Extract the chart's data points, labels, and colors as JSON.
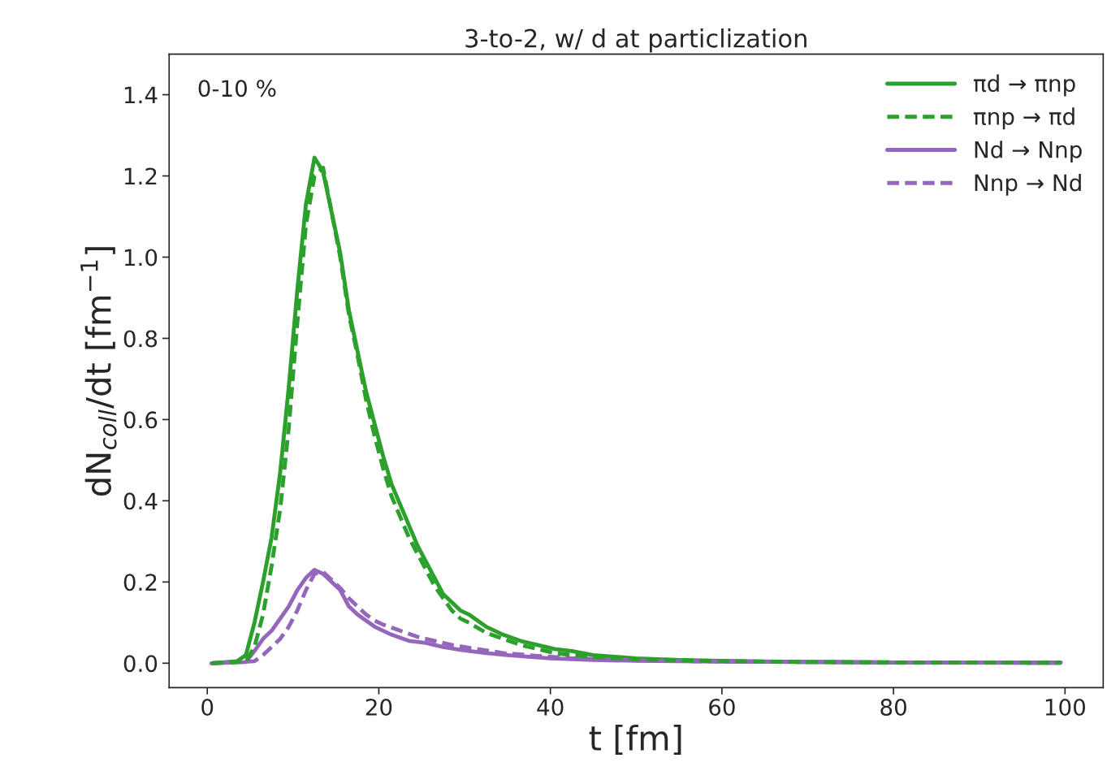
{
  "chart_data": {
    "type": "line",
    "title": "3-to-2, w/ d at particlization",
    "xlabel": "t [fm]",
    "ylabel": "dN$_{coll}$/dt [fm$^{−1}$]",
    "annotations": [
      "0-10 %"
    ],
    "xlim": [
      -4.45,
      104.45
    ],
    "xticks": [
      0,
      20,
      40,
      60,
      80,
      100
    ],
    "ylim": [
      -0.06,
      1.5
    ],
    "yticks": [
      {
        "value": 0,
        "label": "0.0"
      },
      0.2,
      0.4,
      0.6,
      0.8,
      {
        "value": 1,
        "label": "1.0"
      },
      1.2,
      1.4
    ],
    "legend": "top right",
    "grid": false,
    "series": [
      {
        "name": "πd → πnp",
        "color": "#2ca02c",
        "line_style": "solid",
        "x": [
          0.5,
          3.5,
          4.5,
          5.5,
          6.5,
          7.5,
          8.5,
          9.5,
          10.5,
          11.5,
          12.5,
          13.5,
          14.5,
          15.5,
          16.5,
          17.5,
          18.5,
          19.5,
          20.5,
          21.5,
          22.5,
          23.5,
          24.5,
          25.5,
          26.5,
          27.5,
          28.5,
          29.5,
          30.5,
          32.5,
          34.5,
          36.5,
          38.5,
          40.5,
          42.5,
          45,
          50,
          55,
          60,
          70,
          80,
          90,
          99.5
        ],
        "values": [
          0,
          0.005,
          0.02,
          0.1,
          0.2,
          0.31,
          0.47,
          0.68,
          0.92,
          1.13,
          1.245,
          1.21,
          1.11,
          1.01,
          0.87,
          0.77,
          0.67,
          0.59,
          0.51,
          0.44,
          0.39,
          0.34,
          0.29,
          0.25,
          0.21,
          0.17,
          0.15,
          0.13,
          0.12,
          0.09,
          0.07,
          0.055,
          0.045,
          0.035,
          0.03,
          0.02,
          0.012,
          0.008,
          0.006,
          0.003,
          0.002,
          0.002,
          0.002
        ]
      },
      {
        "name": "πnp → πd",
        "color": "#2ca02c",
        "line_style": "dashed",
        "x": [
          0.5,
          4.5,
          5.5,
          6.5,
          7.5,
          8.5,
          9.5,
          10.5,
          11.5,
          12.5,
          13.5,
          14.5,
          15.5,
          16.5,
          17.5,
          18.5,
          19.5,
          20.5,
          21.5,
          22.5,
          23.5,
          24.5,
          25.5,
          26.5,
          27.5,
          28.5,
          29.5,
          30.5,
          32.5,
          34.5,
          36.5,
          38.5,
          40.5,
          42.5,
          45,
          50,
          60,
          70,
          80,
          99.5
        ],
        "values": [
          0,
          0.005,
          0.04,
          0.12,
          0.24,
          0.38,
          0.58,
          0.84,
          1.08,
          1.2,
          1.22,
          1.11,
          1.0,
          0.86,
          0.76,
          0.65,
          0.56,
          0.48,
          0.41,
          0.36,
          0.31,
          0.27,
          0.23,
          0.19,
          0.16,
          0.13,
          0.11,
          0.1,
          0.075,
          0.06,
          0.045,
          0.035,
          0.025,
          0.02,
          0.015,
          0.01,
          0.005,
          0.003,
          0.002,
          0.001
        ]
      },
      {
        "name": "Nd → Nnp",
        "color": "#9467bd",
        "line_style": "solid",
        "x": [
          0.5,
          4.5,
          5.5,
          6.5,
          7.5,
          8.5,
          9.5,
          10.5,
          11.5,
          12.5,
          13.5,
          14.5,
          15.5,
          16.5,
          17.5,
          18.5,
          19.5,
          20.5,
          21.5,
          23.5,
          25.5,
          27.5,
          29.5,
          32.5,
          35,
          40,
          45,
          50,
          60,
          80,
          99.5
        ],
        "values": [
          0,
          0.003,
          0.03,
          0.06,
          0.08,
          0.11,
          0.14,
          0.18,
          0.21,
          0.23,
          0.22,
          0.2,
          0.18,
          0.14,
          0.12,
          0.105,
          0.09,
          0.08,
          0.07,
          0.055,
          0.05,
          0.04,
          0.033,
          0.025,
          0.02,
          0.012,
          0.008,
          0.006,
          0.004,
          0.002,
          0.001
        ]
      },
      {
        "name": "Nnp → Nd",
        "color": "#9467bd",
        "line_style": "dashed",
        "x": [
          0.5,
          5.5,
          6.5,
          7.5,
          8.5,
          9.5,
          10.5,
          11.5,
          12.5,
          13.5,
          14.5,
          15.5,
          16.5,
          17.5,
          18.5,
          19.5,
          20.5,
          22.5,
          24.5,
          26.5,
          28.5,
          30.5,
          34.5,
          38.5,
          42.5,
          50,
          60,
          80,
          99.5
        ],
        "values": [
          0,
          0.005,
          0.02,
          0.04,
          0.06,
          0.09,
          0.13,
          0.18,
          0.22,
          0.225,
          0.205,
          0.185,
          0.16,
          0.14,
          0.12,
          0.105,
          0.095,
          0.08,
          0.065,
          0.055,
          0.045,
          0.038,
          0.025,
          0.018,
          0.012,
          0.007,
          0.004,
          0.002,
          0.001
        ]
      }
    ]
  }
}
